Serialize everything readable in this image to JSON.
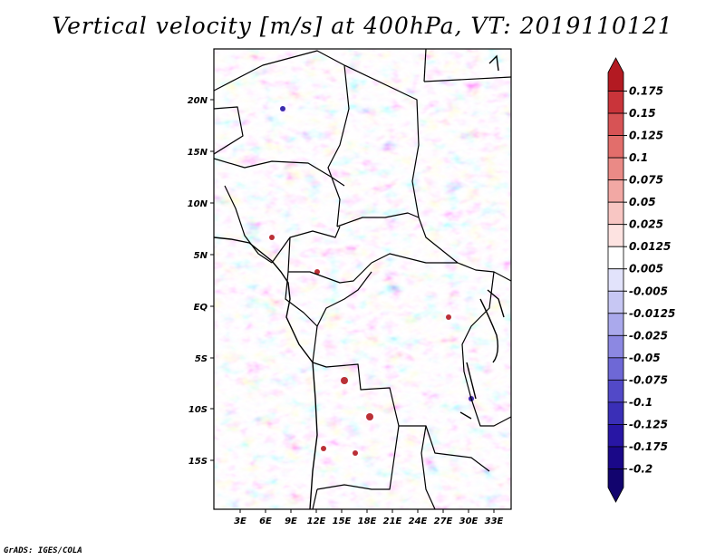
{
  "title": "Vertical velocity [m/s] at 400hPa, VT: 2019110121",
  "footer": "GrADS: IGES/COLA",
  "map": {
    "lat_labels": [
      "20N",
      "15N",
      "10N",
      "5N",
      "EQ",
      "5S",
      "10S",
      "15S"
    ],
    "lon_labels": [
      "3E",
      "6E",
      "9E",
      "12E",
      "15E",
      "18E",
      "21E",
      "24E",
      "27E",
      "30E",
      "33E"
    ]
  },
  "colorbar": {
    "labels": [
      "0.175",
      "0.15",
      "0.125",
      "0.1",
      "0.075",
      "0.05",
      "0.025",
      "0.0125",
      "0.005",
      "-0.005",
      "-0.0125",
      "-0.025",
      "-0.05",
      "-0.075",
      "-0.1",
      "-0.125",
      "-0.175",
      "-0.2"
    ],
    "colors": [
      "#b31a22",
      "#c9343a",
      "#d75355",
      "#e26e6b",
      "#ea8a86",
      "#f2a8a4",
      "#f8c6c3",
      "#fde3e1",
      "#ffffff",
      "#e2e3fb",
      "#c7c7f3",
      "#aaa9ec",
      "#8c88e2",
      "#6e68d6",
      "#5249c8",
      "#3a2fb7",
      "#2816a4",
      "#1a0888",
      "#12046e"
    ]
  }
}
